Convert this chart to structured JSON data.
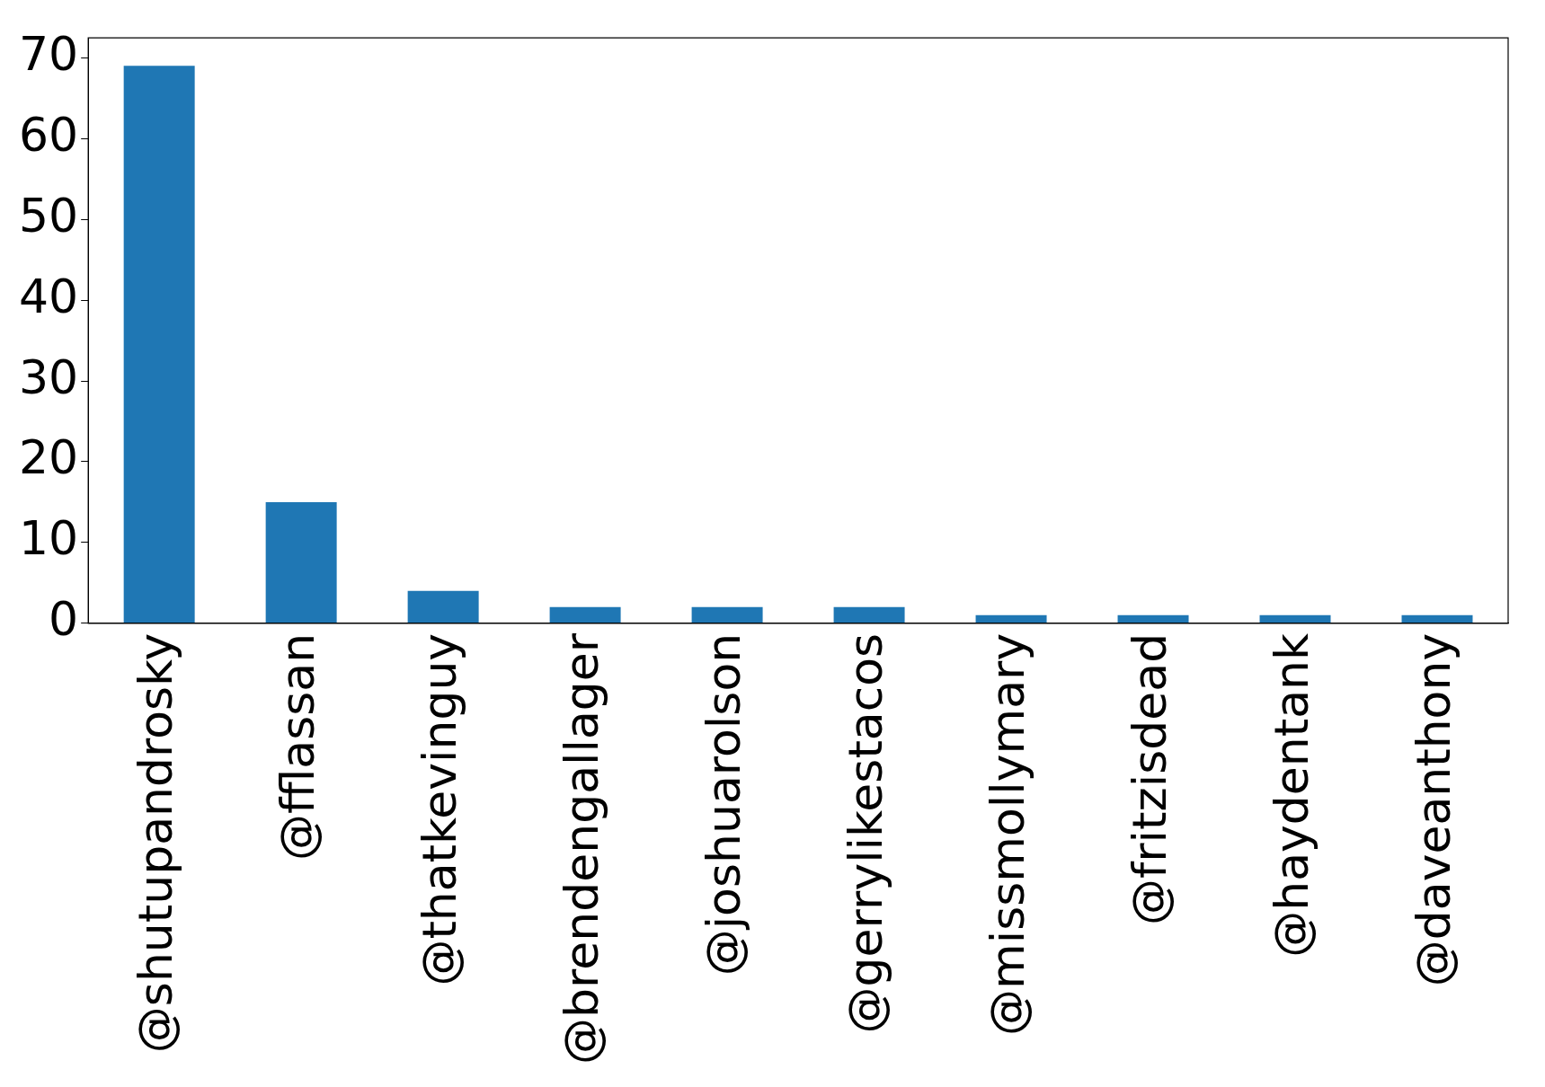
{
  "chart_data": {
    "type": "bar",
    "categories": [
      "@shutupandrosky",
      "@fflassan",
      "@thatkevinguy",
      "@brendengallager",
      "@joshuarolson",
      "@gerrylikestacos",
      "@missmollymary",
      "@fritzisdead",
      "@haydentank",
      "@daveanthony"
    ],
    "values": [
      69,
      15,
      4,
      2,
      2,
      2,
      1,
      1,
      1,
      1
    ],
    "color": "#1f77b4",
    "ylim": [
      0,
      72.45
    ],
    "yticks": [
      0,
      10,
      20,
      30,
      40,
      50,
      60,
      70
    ],
    "grid": false,
    "legend": false
  }
}
